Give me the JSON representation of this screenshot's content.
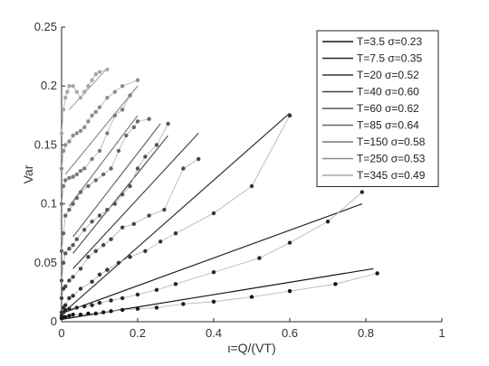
{
  "chart_data": {
    "type": "scatter",
    "title": "",
    "xlabel": "ι=Q/(VT)",
    "ylabel": "Var",
    "xlim": [
      0,
      1
    ],
    "ylim": [
      0,
      0.25
    ],
    "xticks": [
      "0",
      "0.2",
      "0.4",
      "0.6",
      "0.8",
      "1"
    ],
    "yticks": [
      "0",
      "0.05",
      "0.1",
      "0.15",
      "0.2",
      "0.25"
    ],
    "grid": false,
    "legend_position": "top-right",
    "series": [
      {
        "name": "T=3.5 σ=0.23",
        "color": "#151515",
        "points": [
          [
            0.0,
            0.003
          ],
          [
            0.005,
            0.004
          ],
          [
            0.01,
            0.004
          ],
          [
            0.02,
            0.005
          ],
          [
            0.03,
            0.006
          ],
          [
            0.05,
            0.006
          ],
          [
            0.07,
            0.007
          ],
          [
            0.09,
            0.007
          ],
          [
            0.11,
            0.008
          ],
          [
            0.13,
            0.009
          ],
          [
            0.16,
            0.01
          ],
          [
            0.2,
            0.011
          ],
          [
            0.25,
            0.012
          ],
          [
            0.32,
            0.015
          ],
          [
            0.4,
            0.017
          ],
          [
            0.5,
            0.021
          ],
          [
            0.6,
            0.026
          ],
          [
            0.72,
            0.032
          ],
          [
            0.83,
            0.041
          ]
        ],
        "fit": [
          [
            0.0,
            0.002
          ],
          [
            0.82,
            0.045
          ]
        ]
      },
      {
        "name": "T=7.5 σ=0.35",
        "color": "#252525",
        "points": [
          [
            0.0,
            0.005
          ],
          [
            0.005,
            0.008
          ],
          [
            0.01,
            0.01
          ],
          [
            0.02,
            0.011
          ],
          [
            0.04,
            0.012
          ],
          [
            0.06,
            0.013
          ],
          [
            0.08,
            0.014
          ],
          [
            0.1,
            0.016
          ],
          [
            0.13,
            0.018
          ],
          [
            0.16,
            0.02
          ],
          [
            0.2,
            0.023
          ],
          [
            0.25,
            0.027
          ],
          [
            0.3,
            0.032
          ],
          [
            0.4,
            0.042
          ],
          [
            0.52,
            0.054
          ],
          [
            0.6,
            0.067
          ],
          [
            0.7,
            0.085
          ],
          [
            0.79,
            0.11
          ]
        ],
        "fit": [
          [
            0.0,
            0.007
          ],
          [
            0.79,
            0.1
          ]
        ]
      },
      {
        "name": "T=20 σ=0.52",
        "color": "#333333",
        "points": [
          [
            0.0,
            0.008
          ],
          [
            0.005,
            0.012
          ],
          [
            0.01,
            0.014
          ],
          [
            0.02,
            0.02
          ],
          [
            0.03,
            0.022
          ],
          [
            0.05,
            0.028
          ],
          [
            0.08,
            0.034
          ],
          [
            0.1,
            0.04
          ],
          [
            0.12,
            0.044
          ],
          [
            0.15,
            0.05
          ],
          [
            0.18,
            0.055
          ],
          [
            0.22,
            0.06
          ],
          [
            0.26,
            0.068
          ],
          [
            0.3,
            0.075
          ],
          [
            0.4,
            0.092
          ],
          [
            0.5,
            0.115
          ],
          [
            0.6,
            0.175
          ]
        ],
        "fit": [
          [
            0.02,
            0.012
          ],
          [
            0.6,
            0.177
          ]
        ]
      },
      {
        "name": "T=40 σ=0.60",
        "color": "#444444",
        "points": [
          [
            0.0,
            0.02
          ],
          [
            0.005,
            0.028
          ],
          [
            0.01,
            0.03
          ],
          [
            0.02,
            0.035
          ],
          [
            0.03,
            0.038
          ],
          [
            0.05,
            0.045
          ],
          [
            0.07,
            0.055
          ],
          [
            0.09,
            0.06
          ],
          [
            0.11,
            0.065
          ],
          [
            0.13,
            0.07
          ],
          [
            0.16,
            0.08
          ],
          [
            0.19,
            0.083
          ],
          [
            0.23,
            0.09
          ],
          [
            0.27,
            0.095
          ],
          [
            0.32,
            0.13
          ],
          [
            0.36,
            0.138
          ]
        ],
        "fit": [
          [
            0.03,
            0.045
          ],
          [
            0.36,
            0.16
          ]
        ]
      },
      {
        "name": "T=60 σ=0.62",
        "color": "#555555",
        "points": [
          [
            0.0,
            0.035
          ],
          [
            0.005,
            0.05
          ],
          [
            0.01,
            0.058
          ],
          [
            0.02,
            0.062
          ],
          [
            0.03,
            0.065
          ],
          [
            0.04,
            0.07
          ],
          [
            0.06,
            0.078
          ],
          [
            0.08,
            0.085
          ],
          [
            0.1,
            0.09
          ],
          [
            0.12,
            0.095
          ],
          [
            0.14,
            0.1
          ],
          [
            0.16,
            0.108
          ],
          [
            0.18,
            0.115
          ],
          [
            0.2,
            0.13
          ],
          [
            0.22,
            0.14
          ],
          [
            0.25,
            0.15
          ],
          [
            0.28,
            0.168
          ]
        ],
        "fit": [
          [
            0.03,
            0.058
          ],
          [
            0.28,
            0.158
          ]
        ]
      },
      {
        "name": "T=85 σ=0.64",
        "color": "#666666",
        "points": [
          [
            0.0,
            0.06
          ],
          [
            0.005,
            0.075
          ],
          [
            0.01,
            0.09
          ],
          [
            0.02,
            0.095
          ],
          [
            0.03,
            0.1
          ],
          [
            0.04,
            0.105
          ],
          [
            0.05,
            0.11
          ],
          [
            0.07,
            0.115
          ],
          [
            0.09,
            0.12
          ],
          [
            0.11,
            0.125
          ],
          [
            0.13,
            0.13
          ],
          [
            0.15,
            0.145
          ],
          [
            0.17,
            0.158
          ],
          [
            0.19,
            0.165
          ],
          [
            0.2,
            0.17
          ],
          [
            0.23,
            0.172
          ]
        ],
        "fit": [
          [
            0.03,
            0.072
          ],
          [
            0.26,
            0.168
          ]
        ]
      },
      {
        "name": "T=150 σ=0.58",
        "color": "#7a7a7a",
        "points": [
          [
            0.0,
            0.1
          ],
          [
            0.005,
            0.115
          ],
          [
            0.01,
            0.12
          ],
          [
            0.02,
            0.122
          ],
          [
            0.03,
            0.123
          ],
          [
            0.04,
            0.125
          ],
          [
            0.05,
            0.128
          ],
          [
            0.06,
            0.13
          ],
          [
            0.08,
            0.138
          ],
          [
            0.1,
            0.145
          ],
          [
            0.12,
            0.16
          ],
          [
            0.14,
            0.175
          ],
          [
            0.16,
            0.18
          ],
          [
            0.18,
            0.192
          ]
        ],
        "fit": [
          [
            0.02,
            0.098
          ],
          [
            0.2,
            0.175
          ]
        ]
      },
      {
        "name": "T=250 σ=0.53",
        "color": "#8c8c8c",
        "points": [
          [
            0.0,
            0.13
          ],
          [
            0.005,
            0.145
          ],
          [
            0.01,
            0.15
          ],
          [
            0.02,
            0.153
          ],
          [
            0.03,
            0.158
          ],
          [
            0.04,
            0.16
          ],
          [
            0.05,
            0.162
          ],
          [
            0.06,
            0.165
          ],
          [
            0.07,
            0.17
          ],
          [
            0.08,
            0.175
          ],
          [
            0.09,
            0.178
          ],
          [
            0.1,
            0.182
          ],
          [
            0.12,
            0.19
          ],
          [
            0.14,
            0.195
          ],
          [
            0.16,
            0.2
          ],
          [
            0.2,
            0.205
          ]
        ],
        "fit": [
          [
            0.01,
            0.125
          ],
          [
            0.2,
            0.2
          ]
        ]
      },
      {
        "name": "T=345 σ=0.49",
        "color": "#a8a8a8",
        "points": [
          [
            0.0,
            0.16
          ],
          [
            0.005,
            0.18
          ],
          [
            0.01,
            0.19
          ],
          [
            0.015,
            0.195
          ],
          [
            0.02,
            0.2
          ],
          [
            0.03,
            0.2
          ],
          [
            0.04,
            0.195
          ],
          [
            0.05,
            0.19
          ],
          [
            0.06,
            0.195
          ],
          [
            0.07,
            0.2
          ],
          [
            0.08,
            0.205
          ],
          [
            0.09,
            0.21
          ],
          [
            0.1,
            0.212
          ],
          [
            0.12,
            0.214
          ]
        ],
        "fit": [
          [
            0.02,
            0.18
          ],
          [
            0.12,
            0.215
          ]
        ]
      }
    ]
  }
}
